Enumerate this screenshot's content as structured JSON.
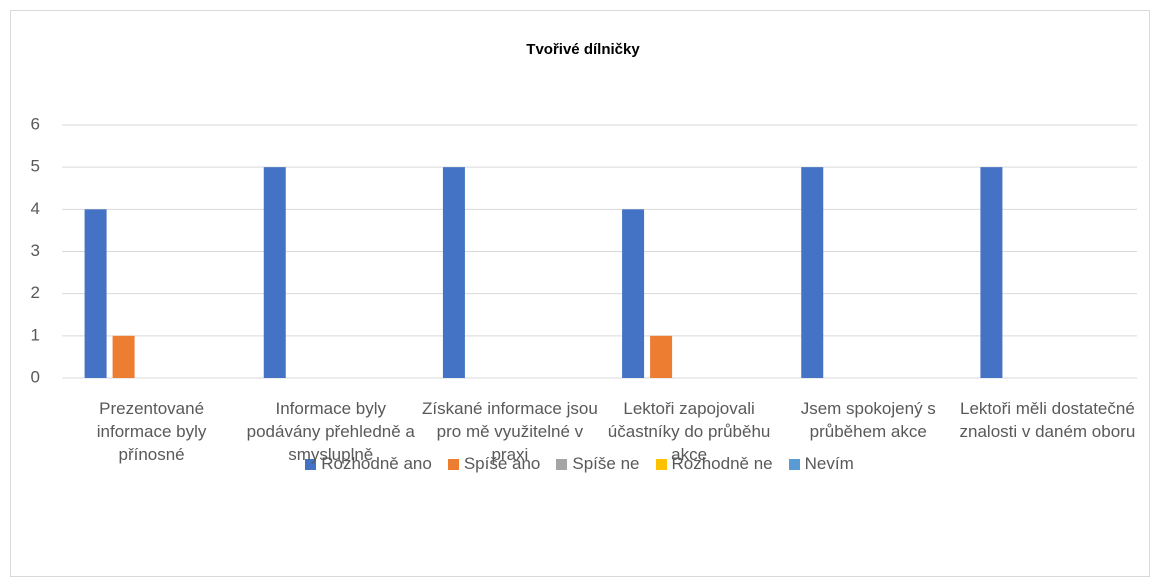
{
  "chart_data": {
    "type": "bar",
    "title": "Tvořivé dílničky",
    "categories": [
      "Prezentované informace byly přínosné",
      "Informace byly podávány přehledně a smysluplně",
      "Získané informace jsou pro mě využitelné v praxi",
      "Lektoři zapojovali účastníky do průběhu akce",
      "Jsem spokojený s průběhem akce",
      "Lektoři měli dostatečné znalosti v daném oboru"
    ],
    "series": [
      {
        "name": "Rozhodně ano",
        "color": "#4472c4",
        "values": [
          4,
          5,
          5,
          4,
          5,
          5
        ]
      },
      {
        "name": "Spíše ano",
        "color": "#ed7d31",
        "values": [
          1,
          0,
          0,
          1,
          0,
          0
        ]
      },
      {
        "name": "Spíše ne",
        "color": "#a5a5a5",
        "values": [
          0,
          0,
          0,
          0,
          0,
          0
        ]
      },
      {
        "name": "Rozhodně ne",
        "color": "#ffc000",
        "values": [
          0,
          0,
          0,
          0,
          0,
          0
        ]
      },
      {
        "name": "Nevím",
        "color": "#5b9bd5",
        "values": [
          0,
          0,
          0,
          0,
          0,
          0
        ]
      }
    ],
    "ylim": [
      0,
      6
    ],
    "yticks": [
      0,
      1,
      2,
      3,
      4,
      5,
      6
    ],
    "grid": true,
    "legend": "bottom"
  }
}
